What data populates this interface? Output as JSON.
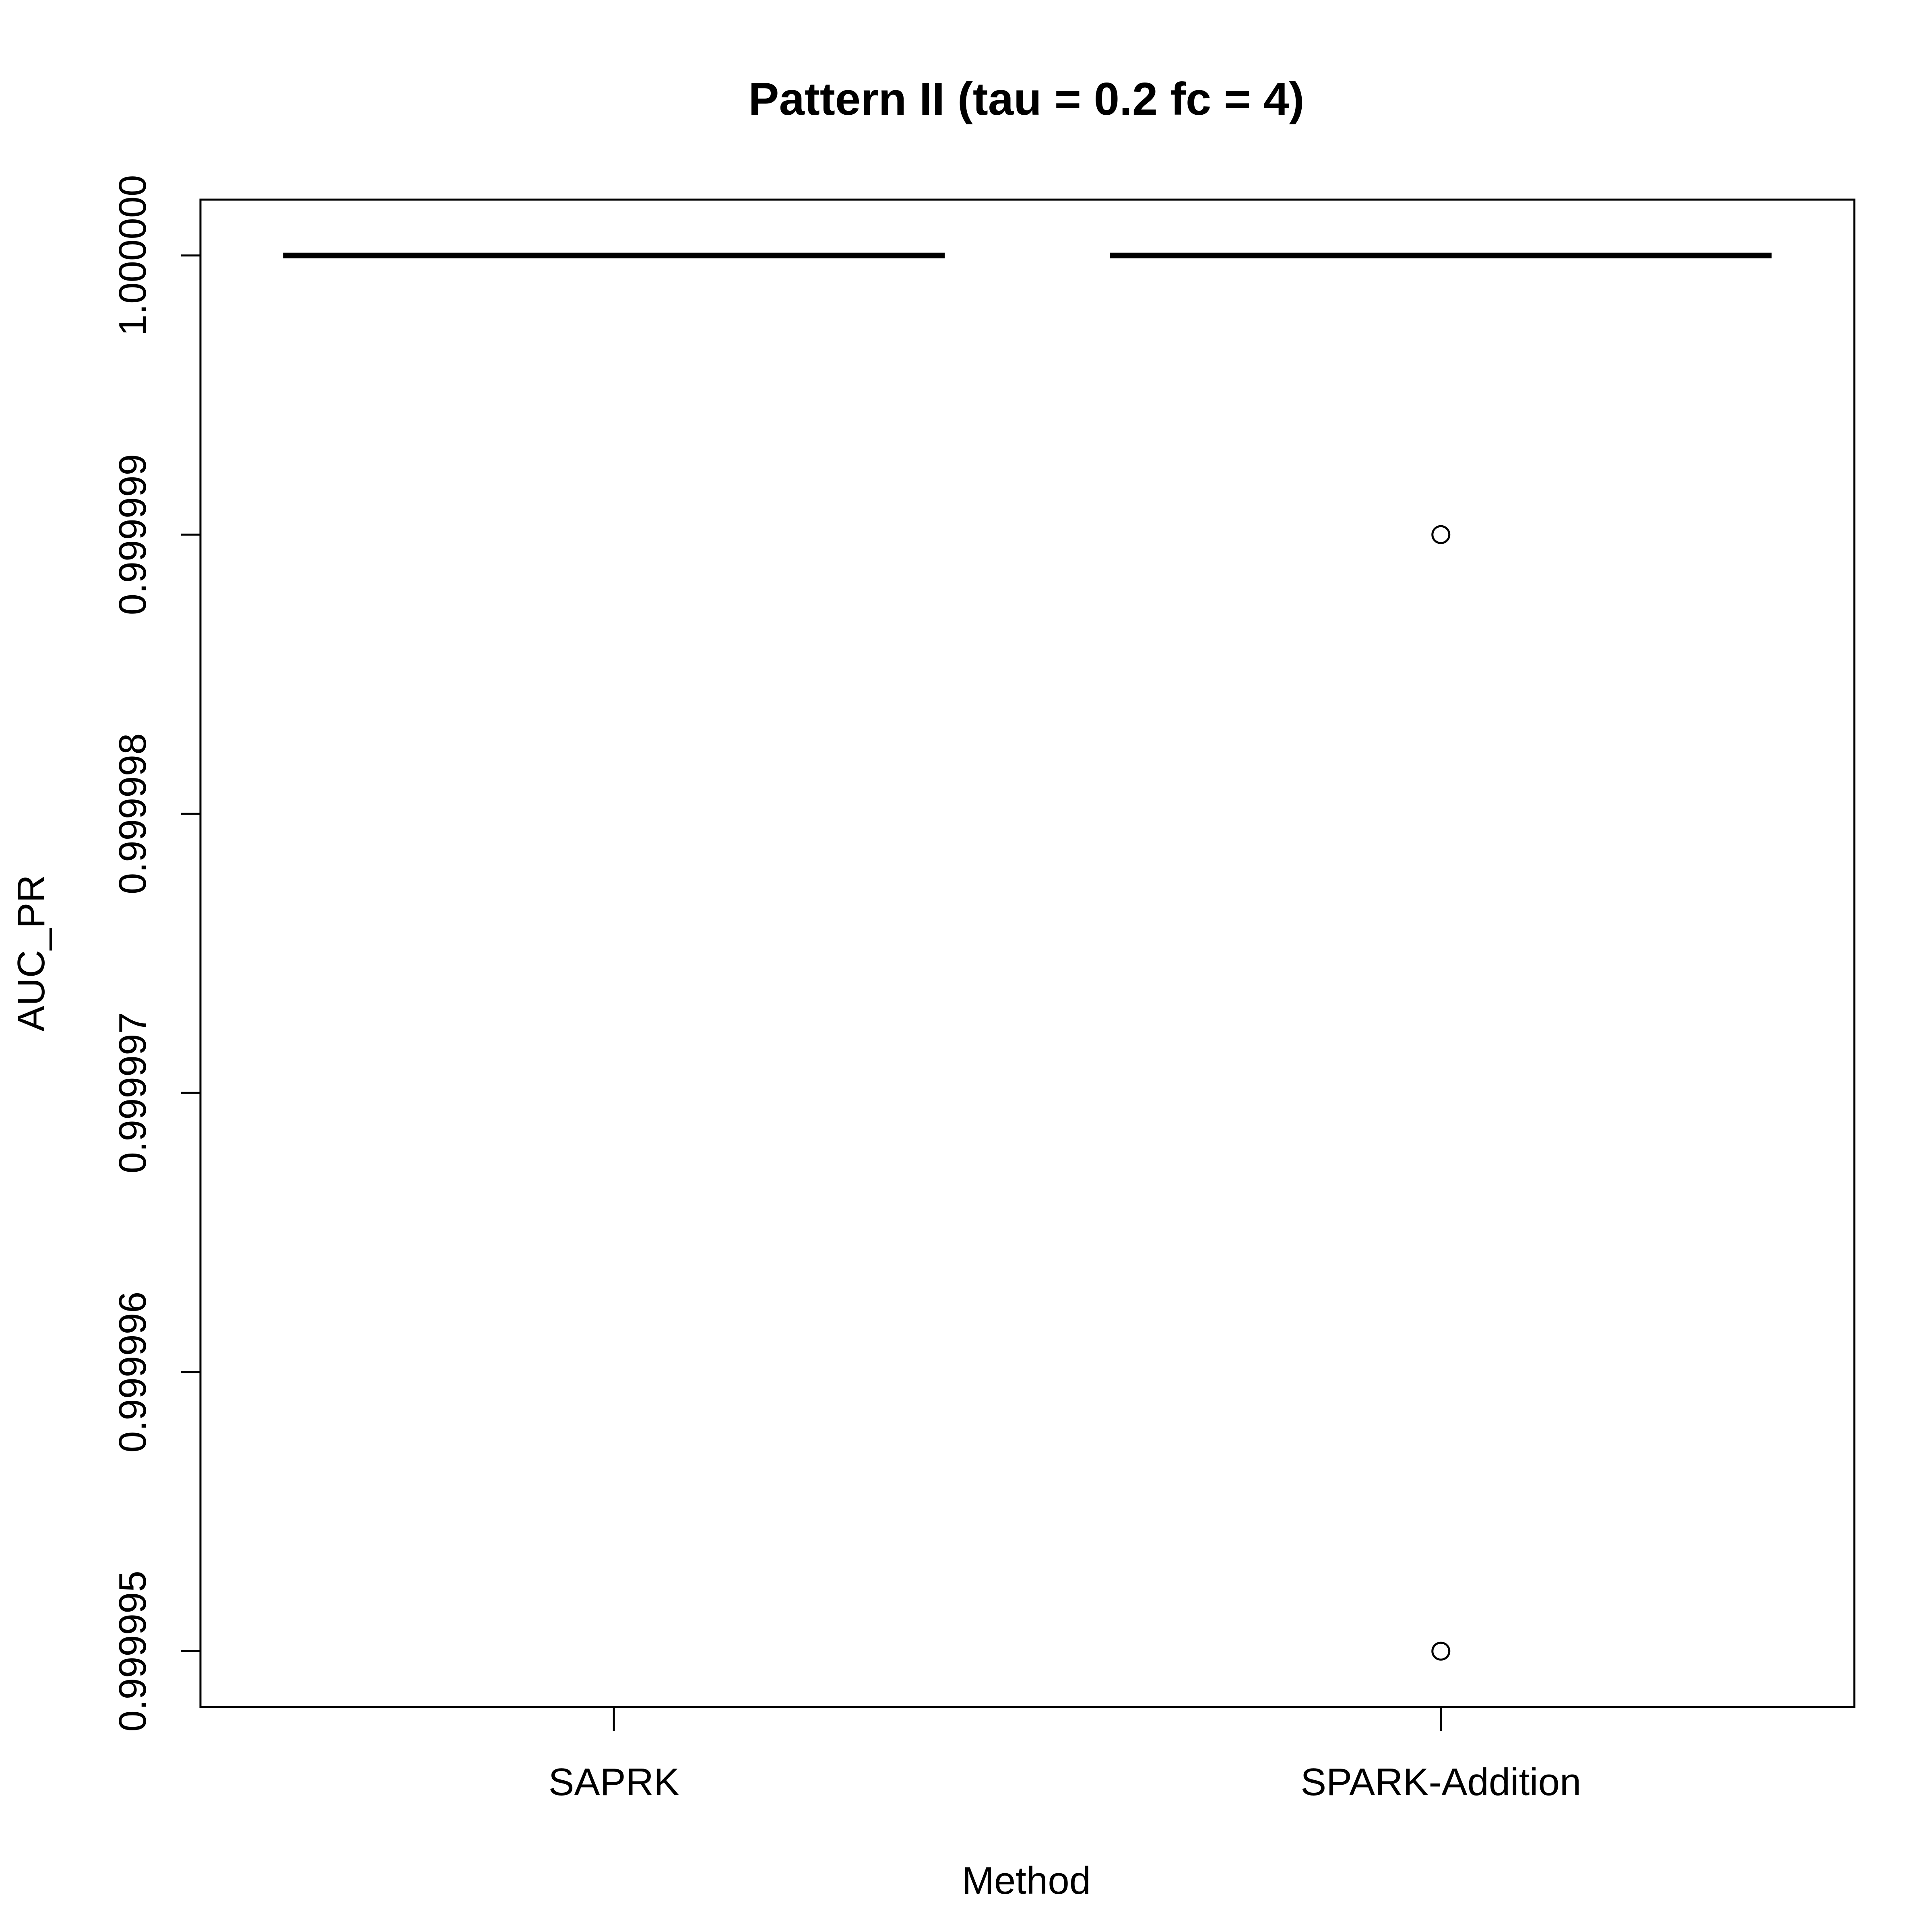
{
  "chart_data": {
    "type": "box",
    "title": "Pattern II (tau = 0.2 fc = 4)",
    "xlabel": "Method",
    "ylabel": "AUC_PR",
    "categories": [
      "SAPRK",
      "SPARK-Addition"
    ],
    "ylim": [
      0.9999948,
      1.0000002
    ],
    "y_ticks": [
      0.999995,
      0.999996,
      0.999997,
      0.999998,
      0.999999,
      1.0
    ],
    "y_tick_labels": [
      "0.999995",
      "0.999996",
      "0.999997",
      "0.999998",
      "0.999999",
      "1.000000"
    ],
    "boxes": [
      {
        "category": "SAPRK",
        "min": 1.0,
        "q1": 1.0,
        "median": 1.0,
        "q3": 1.0,
        "max": 1.0,
        "outliers": []
      },
      {
        "category": "SPARK-Addition",
        "min": 1.0,
        "q1": 1.0,
        "median": 1.0,
        "q3": 1.0,
        "max": 1.0,
        "outliers": [
          0.999999,
          0.999995
        ]
      }
    ],
    "grid": false,
    "colors": {
      "line": "#000000",
      "background": "#ffffff"
    }
  }
}
